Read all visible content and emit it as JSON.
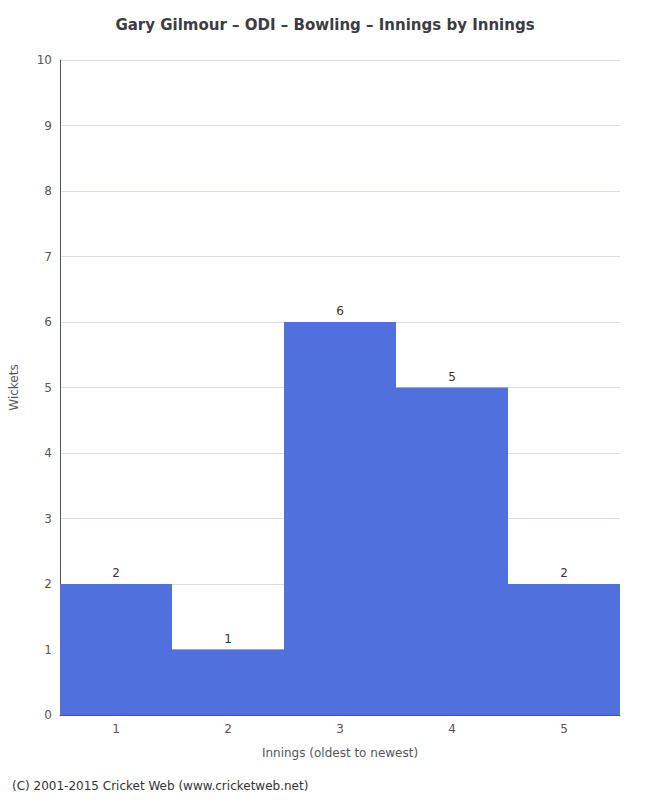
{
  "chart_data": {
    "type": "bar",
    "title": "Gary Gilmour – ODI – Bowling – Innings by Innings",
    "xlabel": "Innings (oldest to newest)",
    "ylabel": "Wickets",
    "categories": [
      1,
      2,
      3,
      4,
      5
    ],
    "values": [
      2,
      1,
      6,
      5,
      2
    ],
    "ylim": [
      0,
      10
    ],
    "yticks": [
      0,
      1,
      2,
      3,
      4,
      5,
      6,
      7,
      8,
      9,
      10
    ],
    "grid": true,
    "data_labels": true,
    "annotations": [
      "(C) 2001-2015 Cricket Web (www.cricketweb.net)"
    ]
  }
}
